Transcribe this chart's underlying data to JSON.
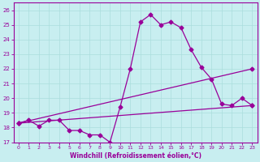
{
  "title": "",
  "xlabel": "Windchill (Refroidissement éolien,°C)",
  "background_color": "#c8eef0",
  "line_color": "#990099",
  "grid_color": "#aadddd",
  "xlim": [
    -0.5,
    23.5
  ],
  "ylim": [
    17,
    26.5
  ],
  "yticks": [
    17,
    18,
    19,
    20,
    21,
    22,
    23,
    24,
    25,
    26
  ],
  "xticks": [
    0,
    1,
    2,
    3,
    4,
    5,
    6,
    7,
    8,
    9,
    10,
    11,
    12,
    13,
    14,
    15,
    16,
    17,
    18,
    19,
    20,
    21,
    22,
    23
  ],
  "line1_x": [
    0,
    1,
    2,
    3,
    4,
    5,
    6,
    7,
    8,
    9,
    10,
    11,
    12,
    13,
    14,
    15,
    16,
    17,
    18,
    19,
    20,
    21,
    22,
    23
  ],
  "line1_y": [
    18.3,
    18.5,
    18.1,
    18.5,
    18.5,
    17.8,
    17.8,
    17.5,
    17.5,
    17.0,
    19.4,
    22.0,
    25.2,
    25.7,
    25.0,
    25.2,
    24.8,
    23.3,
    22.1,
    21.3,
    19.6,
    19.5,
    20.0,
    19.5
  ],
  "line2_x": [
    0,
    23
  ],
  "line2_y": [
    18.3,
    19.5
  ],
  "line3_x": [
    0,
    23
  ],
  "line3_y": [
    18.3,
    22.0
  ],
  "marker_size": 2.5,
  "linewidth": 0.9
}
